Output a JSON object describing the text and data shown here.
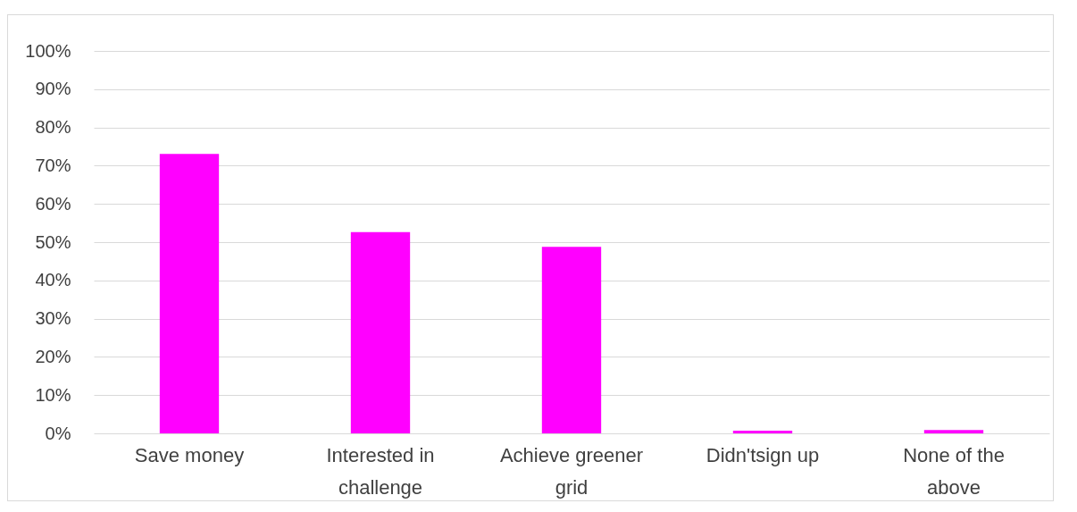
{
  "chart_data": {
    "type": "bar",
    "categories": [
      "Save money",
      "Interested in challenge",
      "Achieve greener grid",
      "Didn'tsign up",
      "None of the above"
    ],
    "values": [
      73.1,
      52.6,
      48.8,
      0.7,
      0.9
    ],
    "color": "#ff00ff",
    "ylim": [
      0,
      100
    ],
    "yticks": [
      {
        "value": 0,
        "label": "0%"
      },
      {
        "value": 10,
        "label": "10%"
      },
      {
        "value": 20,
        "label": "20%"
      },
      {
        "value": 30,
        "label": "30%"
      },
      {
        "value": 40,
        "label": "40%"
      },
      {
        "value": 50,
        "label": "50%"
      },
      {
        "value": 60,
        "label": "60%"
      },
      {
        "value": 70,
        "label": "70%"
      },
      {
        "value": 80,
        "label": "80%"
      },
      {
        "value": 90,
        "label": "90%"
      },
      {
        "value": 100,
        "label": "100%"
      }
    ],
    "grid": "y"
  }
}
